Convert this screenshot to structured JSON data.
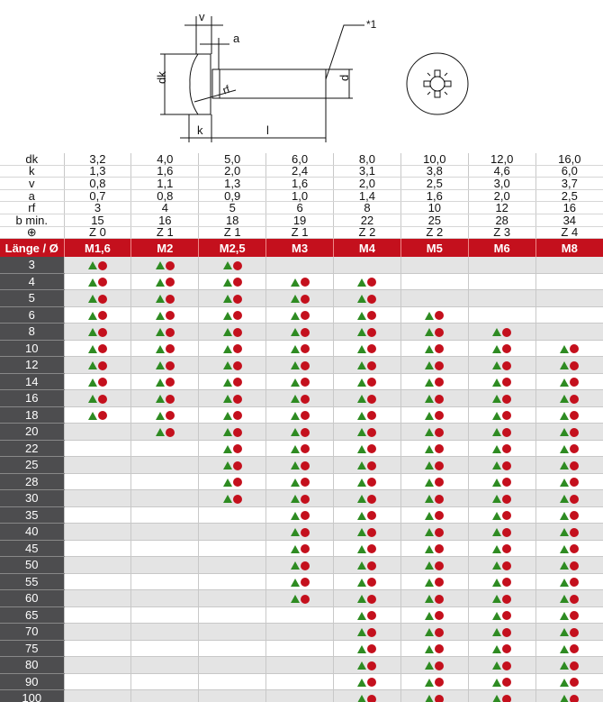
{
  "drawing": {
    "labels": {
      "v": "v",
      "a": "a",
      "dk": "dk",
      "rf": "rf",
      "d": "d",
      "k": "k",
      "l": "l",
      "note": "*1"
    }
  },
  "spec_rows": [
    {
      "label": "dk",
      "values": [
        "3,2",
        "4,0",
        "5,0",
        "6,0",
        "8,0",
        "10,0",
        "12,0",
        "16,0"
      ]
    },
    {
      "label": "k",
      "values": [
        "1,3",
        "1,6",
        "2,0",
        "2,4",
        "3,1",
        "3,8",
        "4,6",
        "6,0"
      ]
    },
    {
      "label": "v",
      "values": [
        "0,8",
        "1,1",
        "1,3",
        "1,6",
        "2,0",
        "2,5",
        "3,0",
        "3,7"
      ]
    },
    {
      "label": "a",
      "values": [
        "0,7",
        "0,8",
        "0,9",
        "1,0",
        "1,4",
        "1,6",
        "2,0",
        "2,5"
      ]
    },
    {
      "label": "rf",
      "values": [
        "3",
        "4",
        "5",
        "6",
        "8",
        "10",
        "12",
        "16"
      ]
    },
    {
      "label": "b min.",
      "values": [
        "15",
        "16",
        "18",
        "19",
        "22",
        "25",
        "28",
        "34"
      ]
    },
    {
      "label": "⊕",
      "values": [
        "Z 0",
        "Z 1",
        "Z 1",
        "Z 1",
        "Z 2",
        "Z 2",
        "Z 3",
        "Z 4"
      ]
    }
  ],
  "header": {
    "label": "Länge / Ø",
    "sizes": [
      "M1,6",
      "M2",
      "M2,5",
      "M3",
      "M4",
      "M5",
      "M6",
      "M8"
    ]
  },
  "colors": {
    "header_red": "#c4101d",
    "triangle_green": "#2e8b22",
    "dot_red": "#c4101d",
    "length_col": "#4d4d4f"
  },
  "availability_range_per_size": [
    {
      "size": "M1,6",
      "from": 3,
      "to": 18
    },
    {
      "size": "M2",
      "from": 3,
      "to": 20
    },
    {
      "size": "M2,5",
      "from": 3,
      "to": 30
    },
    {
      "size": "M3",
      "from": 4,
      "to": 60
    },
    {
      "size": "M4",
      "from": 4,
      "to": 100
    },
    {
      "size": "M5",
      "from": 6,
      "to": 100
    },
    {
      "size": "M6",
      "from": 8,
      "to": 100
    },
    {
      "size": "M8",
      "from": 10,
      "to": 100
    }
  ],
  "lengths": [
    "3",
    "4",
    "5",
    "6",
    "8",
    "10",
    "12",
    "14",
    "16",
    "18",
    "20",
    "22",
    "25",
    "28",
    "30",
    "35",
    "40",
    "45",
    "50",
    "55",
    "60",
    "65",
    "70",
    "75",
    "80",
    "90",
    "100"
  ],
  "marker_icons": [
    "green-triangle-icon",
    "red-dot-icon"
  ]
}
